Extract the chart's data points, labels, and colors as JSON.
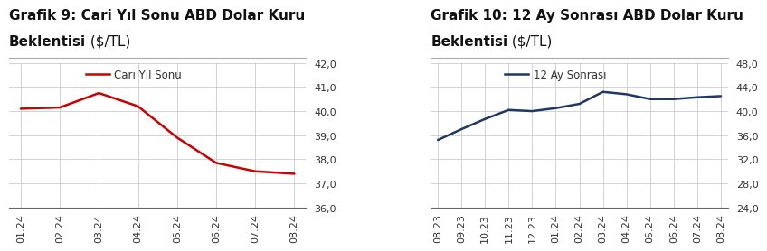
{
  "chart1": {
    "title_line1_bold": "Grafik 9: Cari Yıl Sonu ABD Dolar Kuru",
    "title_line2_bold": "Beklentisi",
    "title_line2_normal": " ($/TL)",
    "x_labels": [
      "01.24",
      "02.24",
      "03.24",
      "04.24",
      "05.24",
      "06.24",
      "07.24",
      "08.24"
    ],
    "y_values": [
      40.1,
      40.15,
      40.75,
      40.2,
      38.9,
      37.85,
      37.5,
      37.4
    ],
    "line_color": "#cc0000",
    "legend_label": "Cari Yıl Sonu",
    "ylim_min": 36.0,
    "ylim_max": 42.0,
    "yticks": [
      36.0,
      37.0,
      38.0,
      39.0,
      40.0,
      41.0,
      42.0
    ]
  },
  "chart2": {
    "title_line1_bold": "Grafik 10: 12 Ay Sonrası ABD Dolar Kuru",
    "title_line2_bold": "Beklentisi",
    "title_line2_normal": " ($/TL)",
    "x_labels": [
      "08.23",
      "09.23",
      "10.23",
      "11.23",
      "12.23",
      "01.24",
      "02.24",
      "03.24",
      "04.24",
      "05.24",
      "06.24",
      "07.24",
      "08.24"
    ],
    "y_values": [
      35.2,
      37.0,
      38.7,
      40.2,
      40.0,
      40.5,
      41.2,
      43.2,
      42.8,
      42.0,
      42.0,
      42.3,
      42.5
    ],
    "line_color": "#1f3864",
    "legend_label": "12 Ay Sonrası",
    "ylim_min": 24.0,
    "ylim_max": 48.0,
    "yticks": [
      24.0,
      28.0,
      32.0,
      36.0,
      40.0,
      44.0,
      48.0
    ]
  },
  "background_color": "#ffffff",
  "grid_color": "#cccccc",
  "title_fontsize": 11,
  "axis_fontsize": 8,
  "legend_fontsize": 8.5,
  "sep_line_color": "#aaaaaa"
}
